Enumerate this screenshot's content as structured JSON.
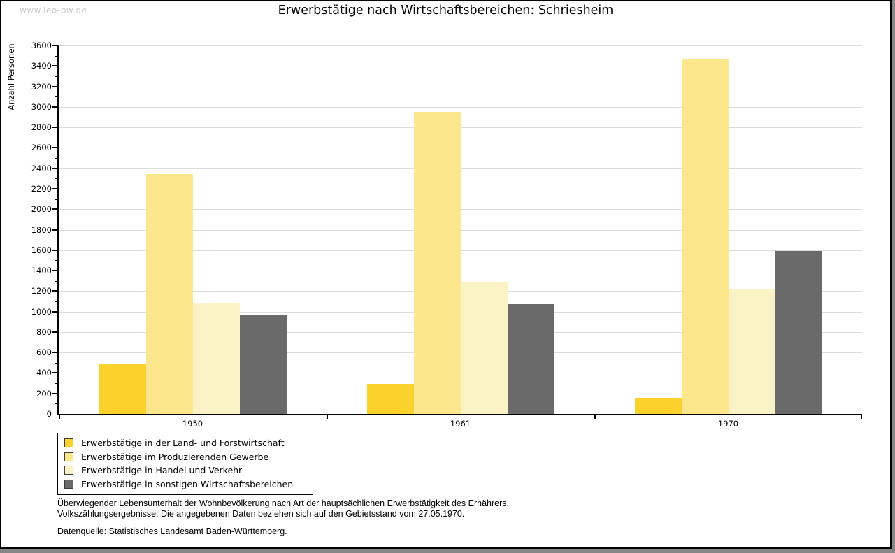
{
  "watermark": "www.leo-bw.de",
  "title": "Erwerbstätige nach Wirtschaftsbereichen: Schriesheim",
  "chart_data": {
    "type": "bar",
    "title": "Erwerbstätige nach Wirtschaftsbereichen: Schriesheim",
    "xlabel": "",
    "ylabel": "Anzahl Personen",
    "categories": [
      "1950",
      "1961",
      "1970"
    ],
    "series": [
      {
        "name": "Erwerbstätige in der Land- und Forstwirtschaft",
        "color": "#fbd22b",
        "values": [
          485,
          295,
          150
        ]
      },
      {
        "name": "Erwerbstätige im Produzierenden Gewerbe",
        "color": "#fde78c",
        "values": [
          2340,
          2950,
          3470
        ]
      },
      {
        "name": "Erwerbstätige in Handel und Verkehr",
        "color": "#fbf2c6",
        "values": [
          1085,
          1290,
          1225
        ]
      },
      {
        "name": "Erwerbstätige in sonstigen Wirtschaftsbereichen",
        "color": "#6a6a6a",
        "values": [
          965,
          1070,
          1590
        ]
      }
    ],
    "ylim": [
      0,
      3600
    ],
    "ytick_step": 200,
    "yminor_step": 100,
    "grid": true,
    "gridline_color": "#dcdcdc",
    "legend_position": "bottom-left"
  },
  "footnotes": {
    "lines": [
      "Überwiegender Lebensunterhalt der Wohnbevölkerung nach Art der hauptsächlichen Erwerbstätigkeit des Ernährers.",
      "Volkszählungsergebnisse. Die angegebenen Daten beziehen sich auf den Gebietsstand vom 27.05.1970."
    ],
    "source": "Datenquelle: Statistisches Landesamt Baden-Württemberg."
  }
}
